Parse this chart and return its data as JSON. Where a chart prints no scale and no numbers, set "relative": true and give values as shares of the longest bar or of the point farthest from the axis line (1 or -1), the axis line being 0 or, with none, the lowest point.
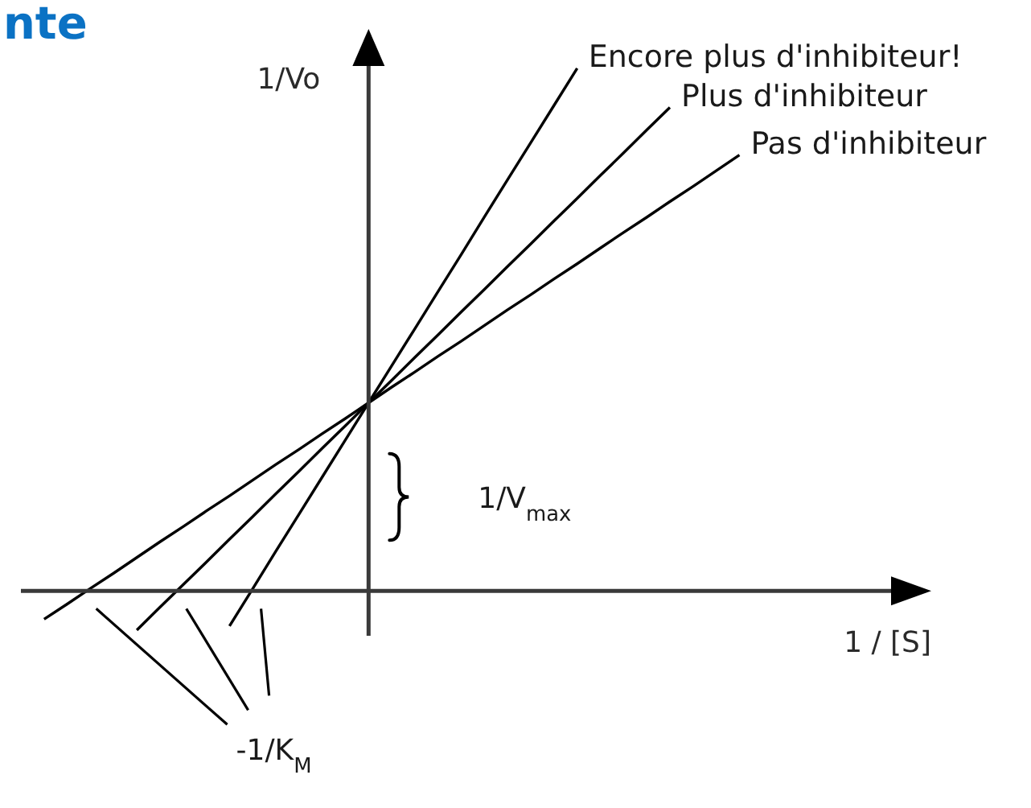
{
  "chart_data": {
    "type": "line",
    "title": "nte",
    "xlabel": "1 / [S]",
    "ylabel": "1/Vo",
    "relative": true,
    "categories": [
      null,
      null,
      null,
      null,
      null,
      null,
      null,
      null,
      null,
      null,
      null,
      null,
      null,
      null,
      null,
      null,
      null,
      null,
      null,
      null,
      null,
      null,
      null,
      null,
      null,
      null,
      null,
      null,
      null,
      null,
      null,
      null,
      null,
      null,
      null,
      null,
      null,
      null,
      null,
      null
    ],
    "series": [
      {
        "name": "Encore plus d'inhibiteur!",
        "color": "#000000",
        "values": [
          null,
          null,
          null,
          null,
          null,
          null,
          null,
          null,
          null,
          -0.067,
          0.004,
          0.076,
          0.147,
          0.218,
          0.289,
          0.36,
          0.431,
          0.502,
          0.573,
          0.644,
          0.716,
          0.787,
          0.858,
          0.929,
          1,
          null,
          null,
          null,
          null,
          null,
          null,
          null,
          null,
          null,
          null,
          null,
          null,
          null,
          null,
          null
        ]
      },
      {
        "name": "Plus d'inhibiteur",
        "color": "#000000",
        "values": [
          null,
          null,
          null,
          null,
          null,
          -0.075,
          -0.031,
          0.012,
          0.055,
          0.099,
          0.142,
          0.186,
          0.229,
          0.273,
          0.316,
          0.36,
          0.403,
          0.447,
          0.49,
          0.534,
          0.577,
          0.621,
          0.664,
          0.708,
          0.751,
          0.795,
          0.838,
          0.882,
          0.925,
          null,
          null,
          null,
          null,
          null,
          null,
          null,
          null,
          null,
          null,
          null
        ]
      },
      {
        "name": "Pas d'inhibiteur",
        "color": "#000000",
        "values": [
          null,
          -0.054,
          -0.025,
          0.005,
          0.034,
          0.064,
          0.094,
          0.123,
          0.153,
          0.182,
          0.212,
          0.242,
          0.271,
          0.301,
          0.33,
          0.36,
          0.39,
          0.419,
          0.449,
          0.478,
          0.508,
          0.538,
          0.567,
          0.597,
          0.626,
          0.656,
          0.686,
          0.715,
          0.745,
          0.774,
          0.804,
          0.834,
          null,
          null,
          null,
          null,
          null,
          null,
          null,
          null
        ]
      }
    ],
    "annotations": [
      "1/V$_{max}$",
      "-1/K$_{M}$"
    ]
  }
}
